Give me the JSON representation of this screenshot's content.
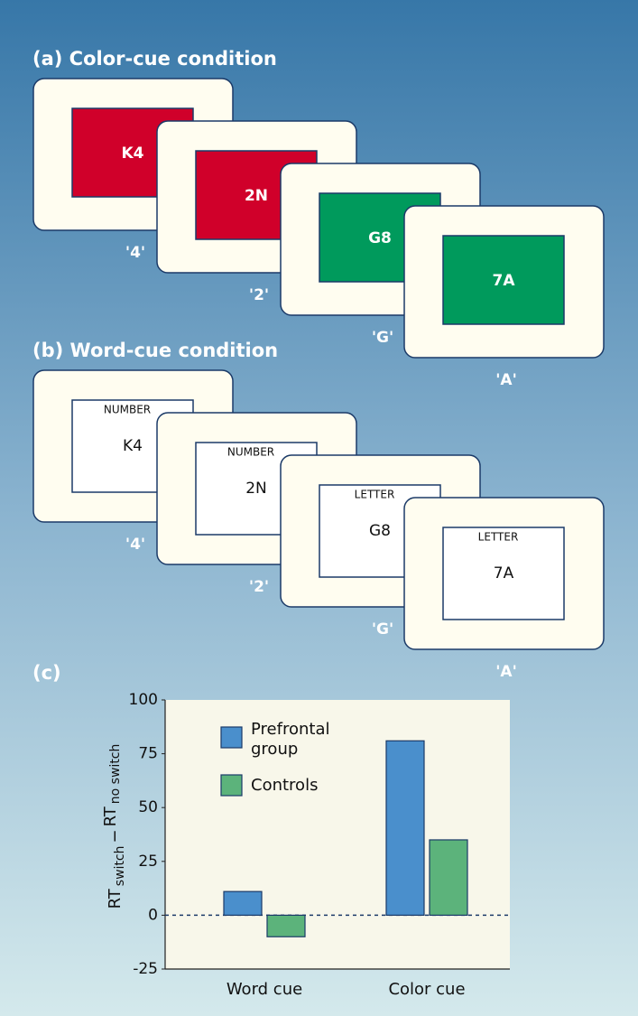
{
  "panel_a": {
    "title": "(a) Color-cue condition",
    "cards": [
      {
        "stimulus": "K4",
        "response": "'4'",
        "color": "#d0002a"
      },
      {
        "stimulus": "2N",
        "response": "'2'",
        "color": "#d0002a"
      },
      {
        "stimulus": "G8",
        "response": "'G'",
        "color": "#009a5c"
      },
      {
        "stimulus": "7A",
        "response": "'A'",
        "color": "#009a5c"
      }
    ]
  },
  "panel_b": {
    "title": "(b) Word-cue condition",
    "cards": [
      {
        "cue": "NUMBER",
        "stimulus": "K4",
        "response": "'4'"
      },
      {
        "cue": "NUMBER",
        "stimulus": "2N",
        "response": "'2'"
      },
      {
        "cue": "LETTER",
        "stimulus": "G8",
        "response": "'G'"
      },
      {
        "cue": "LETTER",
        "stimulus": "7A",
        "response": "'A'"
      }
    ]
  },
  "panel_c": {
    "title": "(c)"
  },
  "chart_data": {
    "type": "bar",
    "ylabel": [
      "RT",
      "switch",
      "−",
      "RT",
      "no switch"
    ],
    "categories": [
      "Word cue",
      "Color cue"
    ],
    "series": [
      {
        "name": "Prefrontal group",
        "color": "#4a8fcc",
        "values": [
          11,
          81
        ]
      },
      {
        "name": "Controls",
        "color": "#5cb37b",
        "values": [
          -10,
          35
        ]
      }
    ],
    "ylim": [
      -25,
      100
    ],
    "yticks": [
      -25,
      0,
      25,
      50,
      75,
      100
    ],
    "legend": "upper left"
  }
}
